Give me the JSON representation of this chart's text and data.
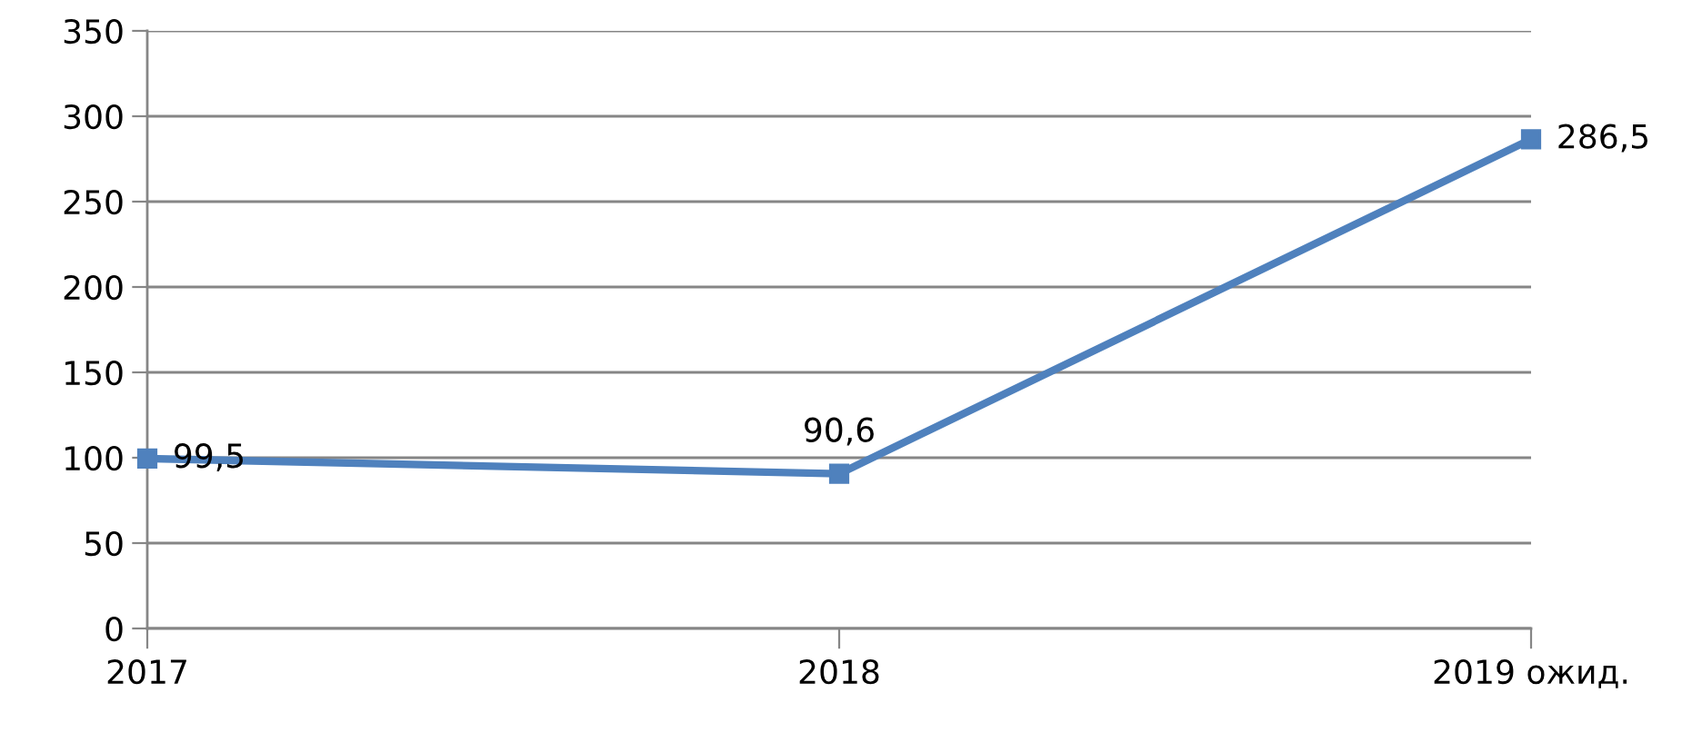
{
  "chart_data": {
    "type": "line",
    "categories": [
      "2017",
      "2018",
      "2019 ожид."
    ],
    "values": [
      99.5,
      90.6,
      286.5
    ],
    "value_labels": [
      "99,5",
      "90,6",
      "286,5"
    ],
    "color": "#4f81bd",
    "ylim": [
      0,
      350
    ],
    "yticks": [
      0,
      50,
      100,
      150,
      200,
      250,
      300,
      350
    ],
    "grid": "y",
    "marker": "square",
    "line_style": "solid"
  }
}
